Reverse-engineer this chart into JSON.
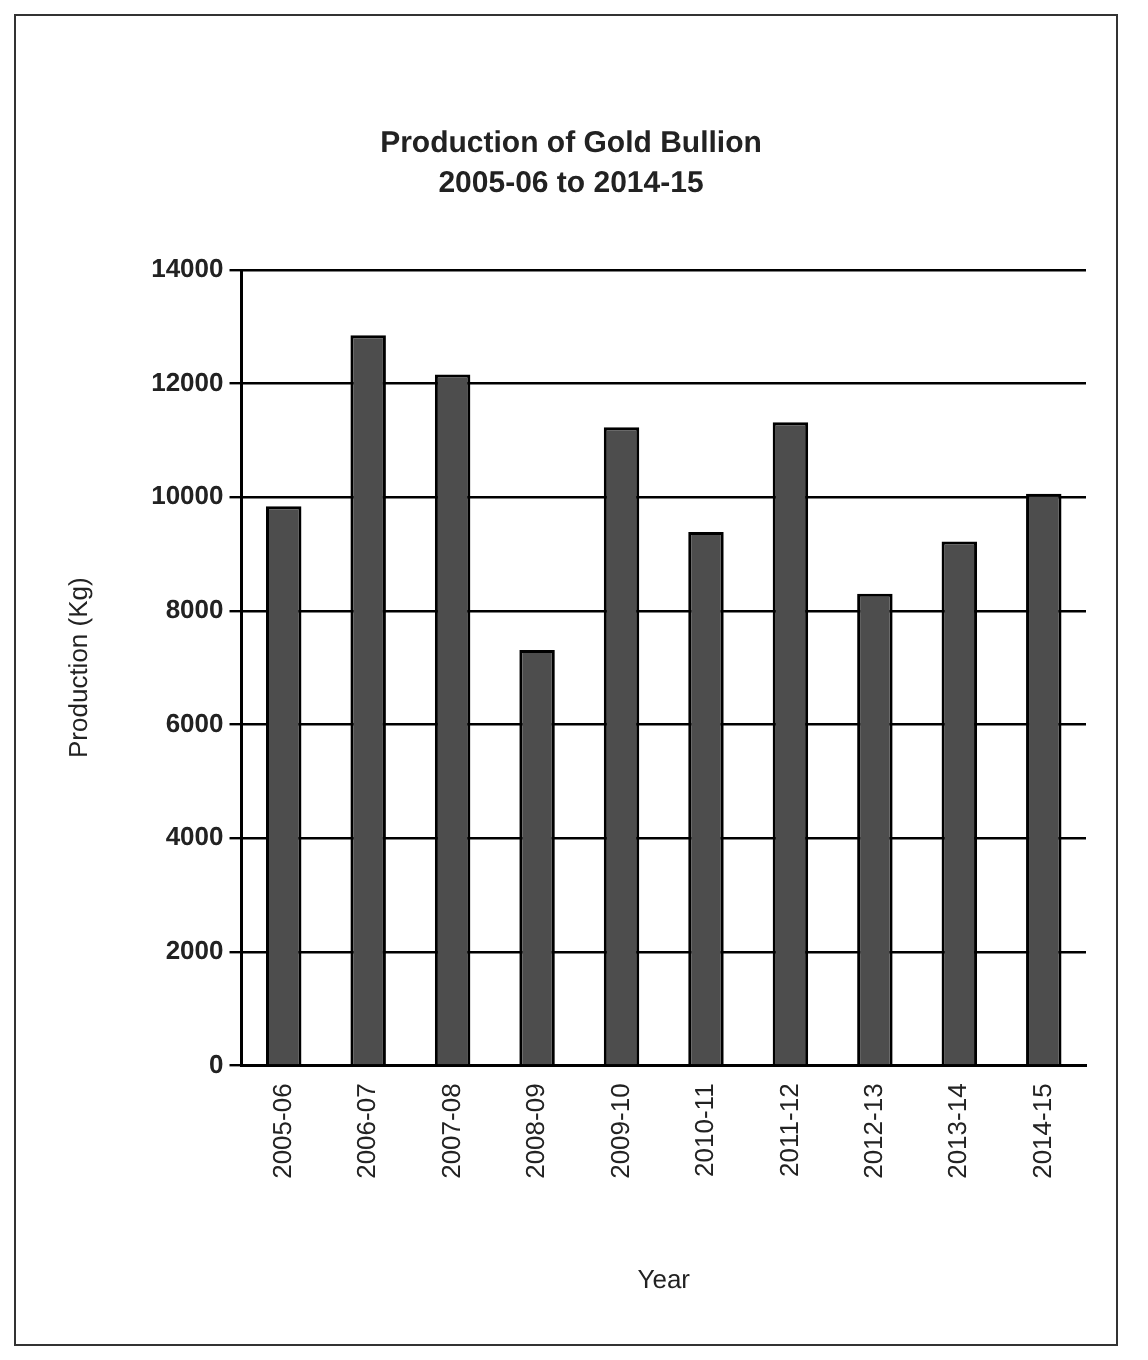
{
  "chart_data": {
    "type": "bar",
    "title": "Production of Gold Bullion",
    "subtitle": "2005-06 to 2014-15",
    "xlabel": "Year",
    "ylabel": "Production (Kg)",
    "categories": [
      "2005-06",
      "2006-07",
      "2007-08",
      "2008-09",
      "2009-10",
      "2010-11",
      "2011-12",
      "2012-13",
      "2013-14",
      "2014-15"
    ],
    "values": [
      9840,
      12850,
      12160,
      7310,
      11230,
      9390,
      11320,
      8300,
      9220,
      10060
    ],
    "color": "#4d4d4d",
    "ylim": [
      0,
      14000
    ],
    "yticks": [
      0,
      2000,
      4000,
      6000,
      8000,
      10000,
      12000,
      14000
    ],
    "grid": "y",
    "legend": false
  }
}
